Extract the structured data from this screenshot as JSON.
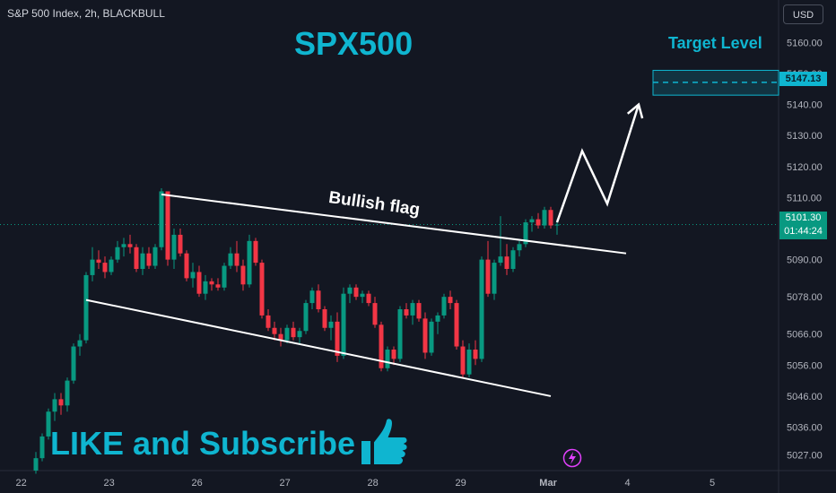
{
  "header": {
    "symbol_text": "S&P 500 Index, 2h, BLACKBULL",
    "currency_button": "USD"
  },
  "annotations": {
    "title": "SPX500",
    "target_label": "Target Level",
    "pattern_label": "Bullish flag",
    "cta": "LIKE and Subscribe"
  },
  "price_badges": {
    "target": "5147.13",
    "current": "5101.30",
    "countdown": "01:44:24"
  },
  "icons": [
    "thumbs-up-icon",
    "lightning-icon"
  ],
  "colors": {
    "background": "#131722",
    "up": "#089981",
    "down": "#f23645",
    "accent": "#0fb5d0",
    "text": "#d1d4dc"
  },
  "chart_data": {
    "type": "candlestick",
    "x_ticks": [
      "22",
      "23",
      "26",
      "27",
      "28",
      "29",
      "Mar",
      "4",
      "5"
    ],
    "y_ticks": [
      5027,
      5036,
      5046,
      5056,
      5066,
      5078,
      5090,
      5101.3,
      5110,
      5120,
      5130,
      5140,
      5150,
      5160
    ],
    "ylim": [
      5022,
      5165
    ],
    "candles": [
      {
        "o": 5022,
        "h": 5028,
        "l": 5021,
        "c": 5026
      },
      {
        "o": 5026,
        "h": 5034,
        "l": 5025,
        "c": 5033
      },
      {
        "o": 5033,
        "h": 5042,
        "l": 5032,
        "c": 5041
      },
      {
        "o": 5041,
        "h": 5047,
        "l": 5038,
        "c": 5045
      },
      {
        "o": 5045,
        "h": 5047,
        "l": 5040,
        "c": 5043
      },
      {
        "o": 5043,
        "h": 5052,
        "l": 5041,
        "c": 5051
      },
      {
        "o": 5051,
        "h": 5063,
        "l": 5050,
        "c": 5062
      },
      {
        "o": 5062,
        "h": 5066,
        "l": 5059,
        "c": 5064
      },
      {
        "o": 5064,
        "h": 5086,
        "l": 5063,
        "c": 5085
      },
      {
        "o": 5085,
        "h": 5094,
        "l": 5083,
        "c": 5090
      },
      {
        "o": 5090,
        "h": 5093,
        "l": 5087,
        "c": 5089
      },
      {
        "o": 5089,
        "h": 5091,
        "l": 5084,
        "c": 5086
      },
      {
        "o": 5086,
        "h": 5091,
        "l": 5085,
        "c": 5090
      },
      {
        "o": 5090,
        "h": 5096,
        "l": 5089,
        "c": 5094
      },
      {
        "o": 5094,
        "h": 5097,
        "l": 5091,
        "c": 5095
      },
      {
        "o": 5095,
        "h": 5098,
        "l": 5092,
        "c": 5094
      },
      {
        "o": 5094,
        "h": 5095,
        "l": 5086,
        "c": 5087
      },
      {
        "o": 5087,
        "h": 5094,
        "l": 5085,
        "c": 5092
      },
      {
        "o": 5092,
        "h": 5094,
        "l": 5087,
        "c": 5088
      },
      {
        "o": 5088,
        "h": 5095,
        "l": 5087,
        "c": 5094
      },
      {
        "o": 5094,
        "h": 5113,
        "l": 5093,
        "c": 5112
      },
      {
        "o": 5112,
        "h": 5112,
        "l": 5088,
        "c": 5090
      },
      {
        "o": 5090,
        "h": 5100,
        "l": 5087,
        "c": 5098
      },
      {
        "o": 5098,
        "h": 5100,
        "l": 5091,
        "c": 5092
      },
      {
        "o": 5092,
        "h": 5093,
        "l": 5083,
        "c": 5084
      },
      {
        "o": 5084,
        "h": 5089,
        "l": 5081,
        "c": 5086
      },
      {
        "o": 5086,
        "h": 5088,
        "l": 5078,
        "c": 5079
      },
      {
        "o": 5079,
        "h": 5085,
        "l": 5077,
        "c": 5083
      },
      {
        "o": 5083,
        "h": 5084,
        "l": 5080,
        "c": 5082
      },
      {
        "o": 5082,
        "h": 5084,
        "l": 5080,
        "c": 5081
      },
      {
        "o": 5081,
        "h": 5089,
        "l": 5080,
        "c": 5088
      },
      {
        "o": 5088,
        "h": 5094,
        "l": 5087,
        "c": 5092
      },
      {
        "o": 5092,
        "h": 5096,
        "l": 5086,
        "c": 5088
      },
      {
        "o": 5088,
        "h": 5090,
        "l": 5080,
        "c": 5082
      },
      {
        "o": 5082,
        "h": 5098,
        "l": 5081,
        "c": 5096
      },
      {
        "o": 5096,
        "h": 5097,
        "l": 5088,
        "c": 5089
      },
      {
        "o": 5089,
        "h": 5090,
        "l": 5071,
        "c": 5072
      },
      {
        "o": 5072,
        "h": 5074,
        "l": 5067,
        "c": 5068
      },
      {
        "o": 5068,
        "h": 5070,
        "l": 5064,
        "c": 5066
      },
      {
        "o": 5066,
        "h": 5068,
        "l": 5062,
        "c": 5064
      },
      {
        "o": 5064,
        "h": 5069,
        "l": 5063,
        "c": 5068
      },
      {
        "o": 5068,
        "h": 5070,
        "l": 5064,
        "c": 5065
      },
      {
        "o": 5065,
        "h": 5068,
        "l": 5063,
        "c": 5067
      },
      {
        "o": 5067,
        "h": 5077,
        "l": 5066,
        "c": 5076
      },
      {
        "o": 5076,
        "h": 5081,
        "l": 5074,
        "c": 5080
      },
      {
        "o": 5080,
        "h": 5082,
        "l": 5073,
        "c": 5074
      },
      {
        "o": 5074,
        "h": 5075,
        "l": 5067,
        "c": 5068
      },
      {
        "o": 5068,
        "h": 5072,
        "l": 5064,
        "c": 5070
      },
      {
        "o": 5070,
        "h": 5073,
        "l": 5057,
        "c": 5059
      },
      {
        "o": 5059,
        "h": 5081,
        "l": 5058,
        "c": 5079
      },
      {
        "o": 5079,
        "h": 5082,
        "l": 5076,
        "c": 5081
      },
      {
        "o": 5081,
        "h": 5082,
        "l": 5077,
        "c": 5078
      },
      {
        "o": 5078,
        "h": 5080,
        "l": 5076,
        "c": 5079
      },
      {
        "o": 5079,
        "h": 5080,
        "l": 5075,
        "c": 5076
      },
      {
        "o": 5076,
        "h": 5078,
        "l": 5068,
        "c": 5069
      },
      {
        "o": 5069,
        "h": 5070,
        "l": 5054,
        "c": 5055
      },
      {
        "o": 5055,
        "h": 5062,
        "l": 5054,
        "c": 5061
      },
      {
        "o": 5061,
        "h": 5062,
        "l": 5056,
        "c": 5058
      },
      {
        "o": 5058,
        "h": 5075,
        "l": 5057,
        "c": 5074
      },
      {
        "o": 5074,
        "h": 5076,
        "l": 5071,
        "c": 5072
      },
      {
        "o": 5072,
        "h": 5077,
        "l": 5069,
        "c": 5076
      },
      {
        "o": 5076,
        "h": 5077,
        "l": 5070,
        "c": 5071
      },
      {
        "o": 5071,
        "h": 5073,
        "l": 5058,
        "c": 5060
      },
      {
        "o": 5060,
        "h": 5071,
        "l": 5059,
        "c": 5070
      },
      {
        "o": 5070,
        "h": 5073,
        "l": 5066,
        "c": 5072
      },
      {
        "o": 5072,
        "h": 5079,
        "l": 5071,
        "c": 5078
      },
      {
        "o": 5078,
        "h": 5080,
        "l": 5074,
        "c": 5076
      },
      {
        "o": 5076,
        "h": 5077,
        "l": 5061,
        "c": 5062
      },
      {
        "o": 5062,
        "h": 5064,
        "l": 5052,
        "c": 5053
      },
      {
        "o": 5053,
        "h": 5063,
        "l": 5052,
        "c": 5061
      },
      {
        "o": 5061,
        "h": 5064,
        "l": 5056,
        "c": 5058
      },
      {
        "o": 5058,
        "h": 5091,
        "l": 5057,
        "c": 5090
      },
      {
        "o": 5090,
        "h": 5096,
        "l": 5078,
        "c": 5079
      },
      {
        "o": 5079,
        "h": 5090,
        "l": 5077,
        "c": 5089
      },
      {
        "o": 5089,
        "h": 5104,
        "l": 5088,
        "c": 5091
      },
      {
        "o": 5091,
        "h": 5095,
        "l": 5085,
        "c": 5087
      },
      {
        "o": 5087,
        "h": 5094,
        "l": 5086,
        "c": 5093
      },
      {
        "o": 5093,
        "h": 5096,
        "l": 5091,
        "c": 5095
      },
      {
        "o": 5095,
        "h": 5103,
        "l": 5094,
        "c": 5102
      },
      {
        "o": 5102,
        "h": 5104,
        "l": 5099,
        "c": 5103
      },
      {
        "o": 5103,
        "h": 5105,
        "l": 5100,
        "c": 5101
      },
      {
        "o": 5101,
        "h": 5107,
        "l": 5100,
        "c": 5106
      },
      {
        "o": 5106,
        "h": 5107,
        "l": 5100,
        "c": 5101
      },
      {
        "o": 5101,
        "h": 5103,
        "l": 5098,
        "c": 5101.3
      }
    ],
    "flag_upper": [
      [
        20,
        5111
      ],
      [
        94,
        5092
      ]
    ],
    "flag_lower": [
      [
        8,
        5077
      ],
      [
        82,
        5046
      ]
    ],
    "target_zone": [
      5143,
      5151
    ],
    "target_price": 5147.13,
    "projection": [
      [
        83,
        5102
      ],
      [
        87,
        5125
      ],
      [
        91,
        5108
      ],
      [
        96,
        5140
      ]
    ],
    "last_price": 5101.3
  }
}
